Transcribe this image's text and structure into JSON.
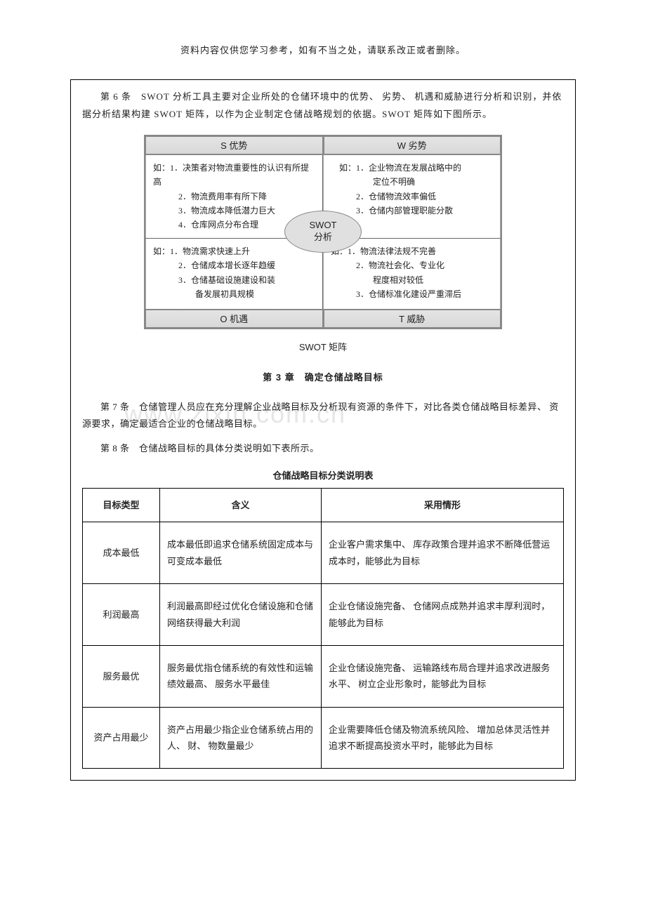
{
  "header_note": "资料内容仅供您学习参考，如有不当之处，请联系改正或者删除。",
  "intro": "第 6 条　SWOT 分析工具主要对企业所处的仓储环境中的优势、 劣势、 机遇和威胁进行分析和识别，并依据分析结果构建 SWOT 矩阵，以作为企业制定仓储战略规划的依据。SWOT 矩阵如下图所示。",
  "swot": {
    "header_left": "S 优势",
    "header_right": "W 劣势",
    "footer_left": "O 机遇",
    "footer_right": "T 威胁",
    "oval_line1": "SWOT",
    "oval_line2": "分析",
    "cells": {
      "s": "如：1．决策者对物流重要性的认识有所提高\n　　　2．物流费用率有所下降\n　　　3．物流成本降低潜力巨大\n　　　4．仓库网点分布合理",
      "w": "　如：1．企业物流在发展战略中的\n　　　　　定位不明确\n　　　2．仓储物流效率偏低\n　　　3．仓储内部管理职能分散",
      "o": "如：1．物流需求快速上升\n　　　2．仓储成本增长逐年趋缓\n　　　3．仓储基础设施建设和装\n　　　　　备发展初具规模",
      "t": "如：1．物流法律法规不完善\n　　　2．物流社会化、专业化\n　　　　　程度相对较低\n　　　3．仓储标准化建设严重滞后"
    },
    "caption": "SWOT 矩阵"
  },
  "chapter_title": "第 3 章　确定仓储战略目标",
  "para7": "第 7 条　仓储管理人员应在充分理解企业战略目标及分析现有资源的条件下，对比各类仓储战略目标差异、 资源要求，确定最适合企业的仓储战略目标。",
  "watermark": "www.zixin.com.cn",
  "para8": "第 8 条　仓储战略目标的具体分类说明如下表所示。",
  "table": {
    "caption": "仓储战略目标分类说明表",
    "headers": [
      "目标类型",
      "含义",
      "采用情形"
    ],
    "rows": [
      {
        "type": "成本最低",
        "meaning": "成本最低即追求仓储系统固定成本与可变成本最低",
        "usage": "企业客户需求集中、 库存政策合理并追求不断降低营运成本时，能够此为目标"
      },
      {
        "type": "利润最高",
        "meaning": "利润最高即经过优化仓储设施和仓储网络获得最大利润",
        "usage": "企业仓储设施完备、 仓储网点成熟并追求丰厚利润时，能够此为目标"
      },
      {
        "type": "服务最优",
        "meaning": "服务最优指仓储系统的有效性和运输绩效最高、 服务水平最佳",
        "usage": "企业仓储设施完备、 运输路线布局合理并追求改进服务水平、 树立企业形象时，能够此为目标"
      },
      {
        "type": "资产占用最少",
        "meaning": "资产占用最少指企业仓储系统占用的人、 财、 物数量最少",
        "usage": "企业需要降低仓储及物流系统风险、 增加总体灵活性并追求不断提高投资水平时，能够此为目标"
      }
    ]
  }
}
